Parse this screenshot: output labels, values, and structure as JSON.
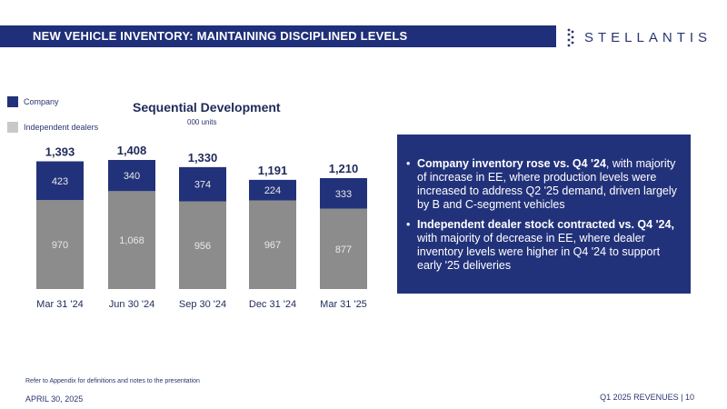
{
  "header": {
    "title": "NEW VEHICLE INVENTORY:  MAINTAINING DISCIPLINED LEVELS"
  },
  "logo": {
    "text": "STELLANTIS",
    "icon": "stellantis-logo-mark"
  },
  "legend": [
    {
      "label": "Company",
      "color": "#22327a"
    },
    {
      "label": "Independent dealers",
      "color": "#c8c8c8"
    }
  ],
  "chart_data": {
    "type": "bar",
    "stacked": true,
    "title": "Sequential Development",
    "subtitle": "000 units",
    "categories": [
      "Mar 31 '24",
      "Jun 30 '24",
      "Sep 30 '24",
      "Dec 31 '24",
      "Mar 31 '25"
    ],
    "series": [
      {
        "name": "Independent dealers",
        "color": "#8c8c8c",
        "values": [
          970,
          1068,
          956,
          967,
          877
        ],
        "labels": [
          "970",
          "1,068",
          "956",
          "967",
          "877"
        ]
      },
      {
        "name": "Company",
        "color": "#22327a",
        "values": [
          423,
          340,
          374,
          224,
          333
        ],
        "labels": [
          "423",
          "340",
          "374",
          "224",
          "333"
        ]
      }
    ],
    "totals": [
      1393,
      1408,
      1330,
      1191,
      1210
    ],
    "total_labels": [
      "1,393",
      "1,408",
      "1,330",
      "1,191",
      "1,210"
    ],
    "ylim": [
      0,
      1408
    ],
    "grid": false
  },
  "info": {
    "bullets": [
      {
        "bold": "Company inventory rose vs. Q4 '24",
        "text": ", with majority of increase in EE, where production levels were increased to address Q2 '25 demand, driven largely by B and C-segment vehicles"
      },
      {
        "bold": "Independent dealer stock contracted vs. Q4 '24,",
        "text": " with majority of decrease in EE, where dealer inventory levels were higher in Q4 '24 to support early '25 deliveries"
      }
    ]
  },
  "footer": {
    "note": "Refer to Appendix for definitions and notes to the presentation",
    "date": "APRIL 30, 2025",
    "page": "Q1 2025 REVENUES  |  10"
  }
}
